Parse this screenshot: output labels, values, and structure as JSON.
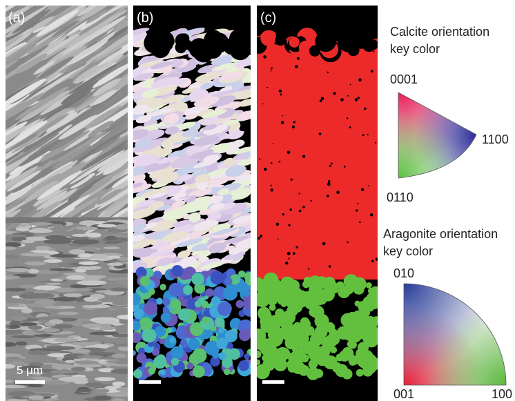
{
  "panels": [
    {
      "label": "(a)",
      "scale_bar": "5 μm"
    },
    {
      "label": "(b)"
    },
    {
      "label": "(c)"
    }
  ],
  "calcite_key": {
    "title_lines": [
      "Calcite orientation",
      "key color"
    ],
    "corners": [
      "0001",
      "1100",
      "0110"
    ]
  },
  "aragonite_key": {
    "title_lines": [
      "Aragonite orientation",
      "key color"
    ],
    "corners": [
      "010",
      "001",
      "100"
    ]
  }
}
